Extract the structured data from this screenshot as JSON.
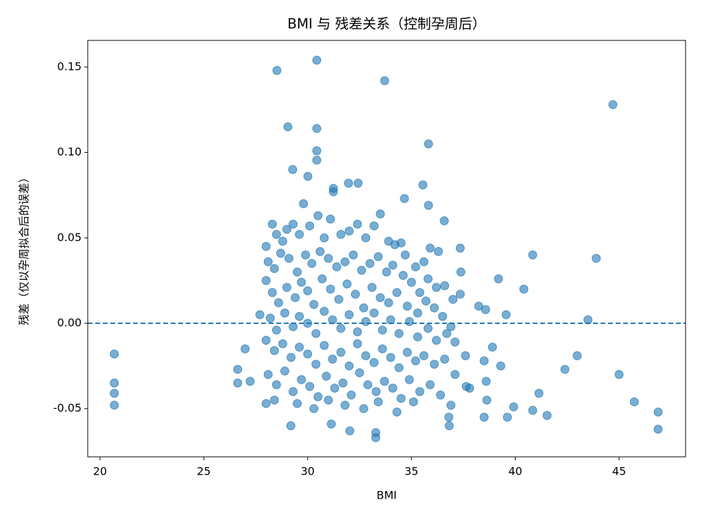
{
  "chart_data": {
    "type": "scatter",
    "title": "BMI 与 残差关系（控制孕周后）",
    "x_label": "BMI",
    "y_label": "残差（仅以孕周拟合后的误差）",
    "color": "#1f77b4",
    "hline": 0,
    "xlim": [
      19.41,
      48.2
    ],
    "ylim": [
      -0.0782,
      0.1656
    ],
    "xticks": [
      20,
      25,
      30,
      35,
      40,
      45
    ],
    "yticks": [
      -0.05,
      {
        "value": 0,
        "label": "0.00"
      },
      0.05,
      {
        "value": 0.1,
        "label": "0.10"
      },
      0.15
    ],
    "x": [
      20.69,
      20.69,
      20.69,
      20.69,
      28.52,
      30.44,
      33.71,
      44.7,
      29.05,
      30.44,
      30.44,
      30.44,
      35.82,
      29.28,
      43.9,
      43.5,
      45.0,
      45.73,
      46.88,
      46.88,
      40.84,
      40.41,
      39.19,
      26.99,
      26.63,
      26.63,
      27.23,
      41.53,
      40.84,
      41.14,
      42.39,
      42.98,
      39.56,
      39.62,
      39.92,
      33.28,
      33.28,
      32.03,
      31.14,
      29.19,
      35.55,
      35.82,
      36.58,
      34.66,
      31.97,
      32.43,
      31.24,
      31.24,
      30.01,
      38.24,
      38.57,
      37.35,
      37.38,
      37.35,
      36.82,
      38.5,
      37.64,
      38.63,
      28.0,
      28.3,
      28.5,
      28.8,
      29.0,
      29.3,
      29.6,
      29.8,
      30.1,
      30.5,
      30.8,
      31.1,
      31.6,
      32.0,
      32.4,
      32.8,
      33.2,
      33.5,
      33.9,
      34.2,
      34.5,
      34.7,
      35.2,
      35.6,
      35.9,
      36.3,
      28.1,
      28.4,
      28.7,
      29.1,
      29.5,
      29.9,
      30.2,
      30.6,
      31.0,
      31.4,
      31.8,
      32.2,
      32.6,
      33.0,
      33.4,
      33.8,
      34.1,
      34.6,
      35.0,
      35.4,
      35.8,
      36.2,
      36.6,
      37.0,
      28.0,
      28.3,
      28.6,
      29.0,
      29.4,
      29.7,
      30.0,
      30.3,
      30.7,
      31.1,
      31.5,
      31.9,
      32.3,
      32.7,
      33.1,
      33.5,
      33.9,
      34.3,
      34.8,
      35.3,
      35.7,
      36.1,
      36.5,
      36.9,
      27.7,
      28.2,
      28.5,
      28.9,
      29.3,
      29.6,
      30.0,
      30.4,
      30.8,
      31.2,
      31.6,
      32.0,
      32.4,
      32.8,
      33.2,
      33.6,
      34.0,
      34.4,
      34.9,
      35.3,
      35.8,
      36.2,
      36.7,
      37.1,
      28.0,
      28.4,
      28.8,
      29.2,
      29.6,
      30.0,
      30.4,
      30.8,
      31.2,
      31.6,
      32.0,
      32.4,
      32.8,
      33.2,
      33.6,
      34.0,
      34.4,
      34.8,
      35.2,
      35.6,
      36.1,
      36.6,
      37.1,
      37.6,
      28.1,
      28.5,
      28.9,
      29.3,
      29.7,
      30.1,
      30.5,
      30.9,
      31.3,
      31.7,
      32.1,
      32.5,
      32.9,
      33.3,
      33.7,
      34.1,
      34.5,
      34.9,
      35.4,
      35.9,
      36.4,
      36.9,
      28.0,
      28.4,
      29.5,
      30.3,
      31.0,
      31.8,
      32.7,
      33.4,
      34.3,
      35.1,
      36.8,
      37.8,
      38.5,
      38.9,
      39.3,
      38.6
    ],
    "values": [
      -0.018,
      -0.035,
      -0.041,
      -0.048,
      0.148,
      0.154,
      0.142,
      0.128,
      0.115,
      0.114,
      0.101,
      0.0955,
      0.105,
      0.09,
      0.038,
      0.002,
      -0.03,
      -0.046,
      -0.052,
      -0.062,
      0.04,
      0.02,
      0.026,
      -0.015,
      -0.027,
      -0.035,
      -0.034,
      -0.054,
      -0.051,
      -0.041,
      -0.027,
      -0.019,
      0.005,
      -0.055,
      -0.049,
      -0.064,
      -0.067,
      -0.063,
      -0.059,
      -0.06,
      0.081,
      0.069,
      0.06,
      0.073,
      0.082,
      0.082,
      0.079,
      0.077,
      0.086,
      0.01,
      0.008,
      0.044,
      0.03,
      0.017,
      -0.06,
      -0.055,
      -0.037,
      -0.045,
      0.045,
      0.058,
      0.052,
      0.048,
      0.055,
      0.058,
      0.052,
      0.07,
      0.057,
      0.063,
      0.05,
      0.061,
      0.052,
      0.054,
      0.058,
      0.05,
      0.057,
      0.064,
      0.048,
      0.046,
      0.047,
      0.04,
      0.033,
      0.036,
      0.044,
      0.042,
      0.036,
      0.032,
      0.041,
      0.038,
      0.03,
      0.04,
      0.035,
      0.042,
      0.038,
      0.033,
      0.036,
      0.04,
      0.031,
      0.035,
      0.039,
      0.03,
      0.034,
      0.028,
      0.024,
      0.018,
      0.026,
      0.021,
      0.022,
      0.014,
      0.025,
      0.018,
      0.012,
      0.021,
      0.015,
      0.024,
      0.019,
      0.011,
      0.026,
      0.02,
      0.014,
      0.023,
      0.017,
      0.009,
      0.021,
      0.015,
      0.012,
      0.018,
      0.01,
      0.006,
      0.013,
      0.009,
      0.004,
      -0.002,
      0.005,
      0.003,
      -0.004,
      0.006,
      -0.002,
      0.004,
      0.0,
      -0.006,
      0.007,
      0.002,
      -0.003,
      0.005,
      -0.005,
      0.001,
      0.006,
      -0.004,
      0.002,
      -0.006,
      0.001,
      -0.008,
      -0.003,
      -0.01,
      -0.006,
      -0.011,
      -0.01,
      -0.016,
      -0.012,
      -0.02,
      -0.014,
      -0.018,
      -0.024,
      -0.013,
      -0.021,
      -0.017,
      -0.025,
      -0.012,
      -0.019,
      -0.023,
      -0.015,
      -0.02,
      -0.026,
      -0.017,
      -0.022,
      -0.019,
      -0.024,
      -0.021,
      -0.03,
      -0.019,
      -0.03,
      -0.036,
      -0.028,
      -0.04,
      -0.033,
      -0.037,
      -0.043,
      -0.031,
      -0.038,
      -0.035,
      -0.042,
      -0.029,
      -0.036,
      -0.04,
      -0.034,
      -0.038,
      -0.044,
      -0.033,
      -0.04,
      -0.036,
      -0.042,
      -0.048,
      -0.047,
      -0.045,
      -0.047,
      -0.05,
      -0.045,
      -0.048,
      -0.05,
      -0.046,
      -0.052,
      -0.046,
      -0.055,
      -0.038,
      -0.022,
      -0.014,
      -0.025,
      -0.034
    ]
  }
}
